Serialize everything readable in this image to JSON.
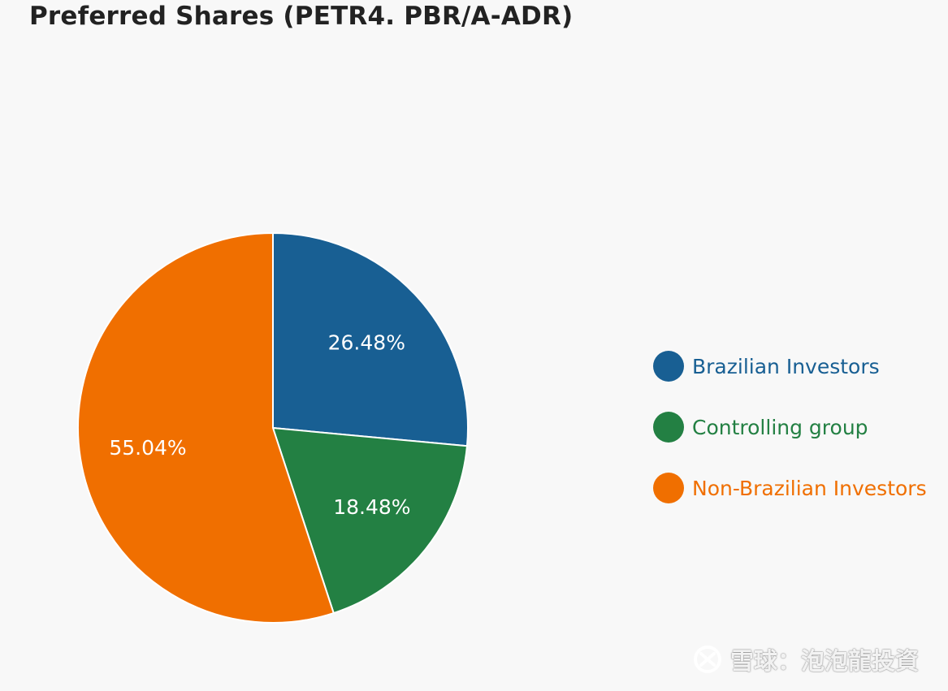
{
  "chart_data": {
    "type": "pie",
    "title": "Preferred Shares (PETR4. PBR/A-ADR)",
    "slices": [
      {
        "name": "Brazilian Investors",
        "value": 26.48,
        "label": "26.48%",
        "color": "#185f93"
      },
      {
        "name": "Controlling group",
        "value": 18.48,
        "label": "18.48%",
        "color": "#238043"
      },
      {
        "name": "Non-Brazilian Investors",
        "value": 55.04,
        "label": "55.04%",
        "color": "#f06f00"
      }
    ],
    "start_angle_deg": 0,
    "direction": "clockwise",
    "legend_placement": "right"
  },
  "watermark": {
    "icon": "snowball-logo-icon",
    "text": "雪球：泡泡龍投資"
  }
}
